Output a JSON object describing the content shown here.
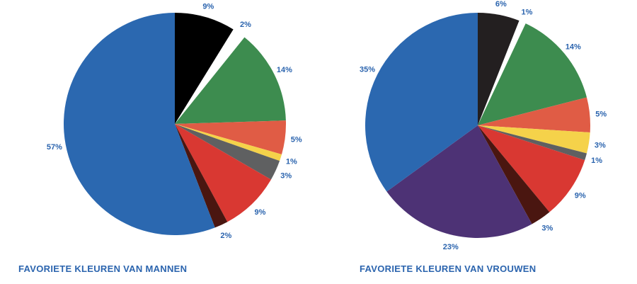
{
  "chart_data": [
    {
      "type": "pie",
      "title": "FAVORIETE KLEUREN VAN MANNEN",
      "slices": [
        {
          "label": "9%",
          "value": 9,
          "color": "#000000",
          "exploded": false
        },
        {
          "label": "2%",
          "value": 2,
          "color": "#ffffff",
          "exploded": true
        },
        {
          "label": "14%",
          "value": 14,
          "color": "#3d8c4f",
          "exploded": false
        },
        {
          "label": "5%",
          "value": 5,
          "color": "#e05c45",
          "exploded": false
        },
        {
          "label": "1%",
          "value": 1,
          "color": "#f5d24a",
          "exploded": false
        },
        {
          "label": "3%",
          "value": 3,
          "color": "#5f6061",
          "exploded": false
        },
        {
          "label": "9%",
          "value": 9,
          "color": "#d93832",
          "exploded": false
        },
        {
          "label": "2%",
          "value": 2,
          "color": "#4a1610",
          "exploded": false
        },
        {
          "label": "57%",
          "value": 57,
          "color": "#2b68b0",
          "exploded": false
        }
      ]
    },
    {
      "type": "pie",
      "title": "FAVORIETE KLEUREN VAN VROUWEN",
      "slices": [
        {
          "label": "6%",
          "value": 6,
          "color": "#231f20",
          "exploded": false
        },
        {
          "label": "1%",
          "value": 1,
          "color": "#ffffff",
          "exploded": true
        },
        {
          "label": "14%",
          "value": 14,
          "color": "#3d8c4f",
          "exploded": false
        },
        {
          "label": "5%",
          "value": 5,
          "color": "#e05c45",
          "exploded": false
        },
        {
          "label": "3%",
          "value": 3,
          "color": "#f5d24a",
          "exploded": false
        },
        {
          "label": "1%",
          "value": 1,
          "color": "#5f6061",
          "exploded": false
        },
        {
          "label": "9%",
          "value": 9,
          "color": "#d93832",
          "exploded": false
        },
        {
          "label": "3%",
          "value": 3,
          "color": "#4a1610",
          "exploded": false
        },
        {
          "label": "23%",
          "value": 23,
          "color": "#4d3275",
          "exploded": false
        },
        {
          "label": "35%",
          "value": 35,
          "color": "#2b68b0",
          "exploded": false
        }
      ]
    }
  ]
}
